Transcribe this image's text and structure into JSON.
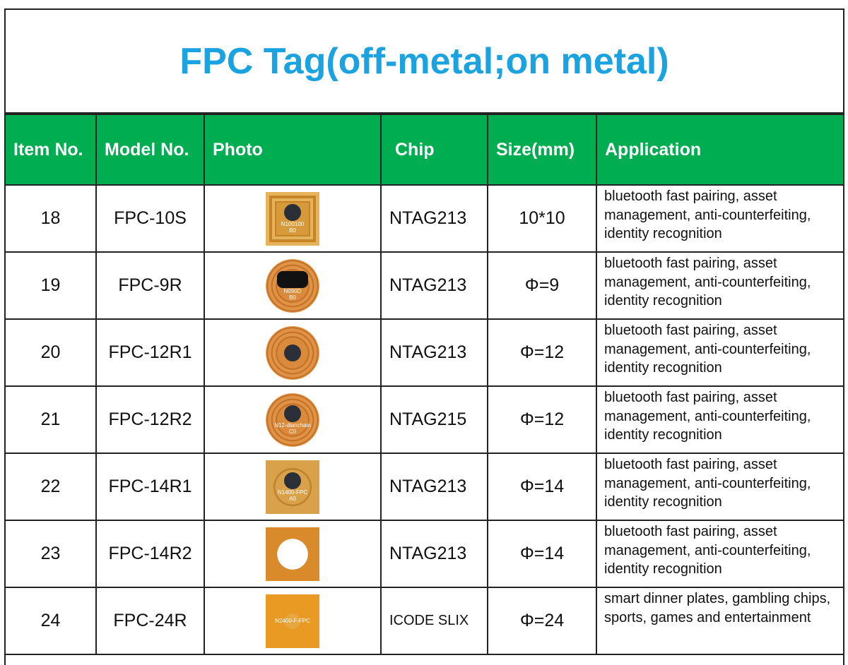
{
  "title": "FPC Tag(off-metal;on metal)",
  "colors": {
    "title": "#1aa3e0",
    "header_bg": "#00ad50",
    "header_text": "#ffffff"
  },
  "headers": [
    "Item No.",
    "Model No.",
    "Photo",
    "Chip",
    "Size(mm)",
    "Application"
  ],
  "rows": [
    {
      "item": "18",
      "model": "FPC-10S",
      "chip": "NTAG213",
      "size": "10*10",
      "application": "bluetooth fast pairing, asset management, anti-counterfeiting, identity recognition",
      "photo_label": [
        "N100100",
        "B0"
      ]
    },
    {
      "item": "19",
      "model": "FPC-9R",
      "chip": "NTAG213",
      "size": "Φ=9",
      "application": "bluetooth fast pairing, asset management, anti-counterfeiting, identity recognition",
      "photo_label": [
        "N090D",
        "B0"
      ]
    },
    {
      "item": "20",
      "model": "FPC-12R1",
      "chip": "NTAG213",
      "size": "Φ=12",
      "application": "bluetooth fast pairing, asset management, anti-counterfeiting, identity recognition",
      "photo_label": [
        "",
        ""
      ]
    },
    {
      "item": "21",
      "model": "FPC-12R2",
      "chip": "NTAG215",
      "size": "Φ=12",
      "application": "bluetooth fast pairing, asset management, anti-counterfeiting, identity recognition",
      "photo_label": [
        "N12-dianchain",
        "C0"
      ]
    },
    {
      "item": "22",
      "model": "FPC-14R1",
      "chip": "NTAG213",
      "size": "Φ=14",
      "application": "bluetooth fast pairing, asset management, anti-counterfeiting, identity recognition",
      "photo_label": [
        "N1400-FPC",
        "A0"
      ]
    },
    {
      "item": "23",
      "model": "FPC-14R2",
      "chip": "NTAG213",
      "size": "Φ=14",
      "application": "bluetooth fast pairing, asset management, anti-counterfeiting, identity recognition",
      "photo_label": [
        "",
        ""
      ]
    },
    {
      "item": "24",
      "model": "FPC-24R",
      "chip": "ICODE SLIX",
      "size": "Φ=24",
      "application": "smart dinner plates, gambling chips, sports, games and entertainment",
      "photo_label": [
        "N2400-F-FPC",
        ""
      ]
    }
  ]
}
